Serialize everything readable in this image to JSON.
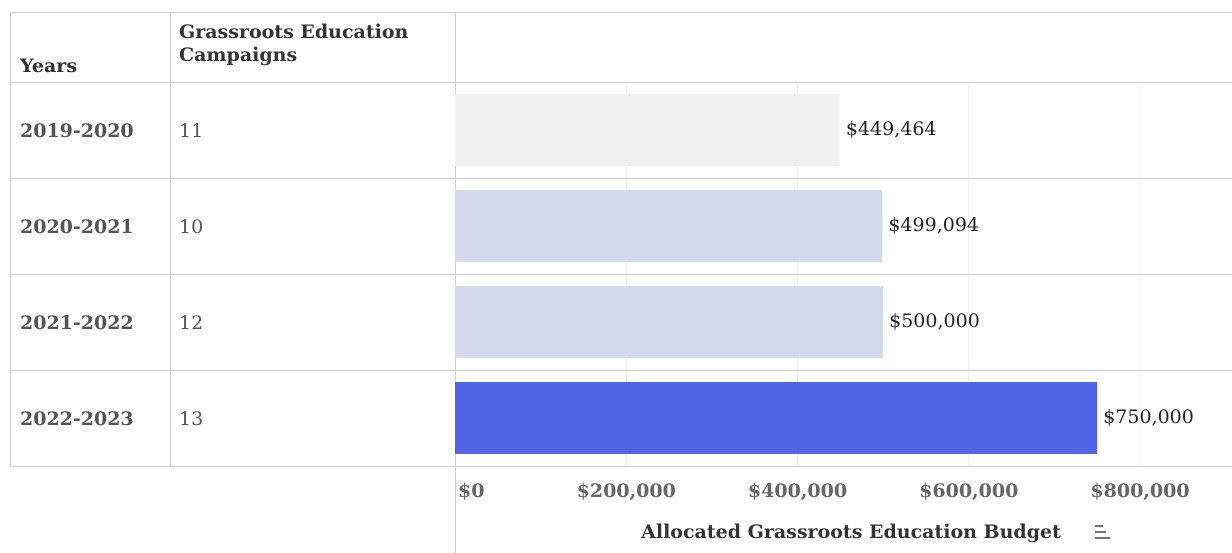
{
  "chart_data": {
    "type": "bar",
    "orientation": "horizontal",
    "category_label": "Years",
    "column_label": "Grassroots Education Campaigns",
    "categories": [
      "2019-2020",
      "2020-2021",
      "2021-2022",
      "2022-2023"
    ],
    "column_values": [
      11,
      10,
      12,
      13
    ],
    "values": [
      449464,
      499094,
      500000,
      750000
    ],
    "value_labels": [
      "$449,464",
      "$499,094",
      "$500,000",
      "$750,000"
    ],
    "colors": [
      "#f0f0f0",
      "#d6d9ee",
      "#d6d9ee",
      "#5163e6"
    ],
    "xlabel": "Allocated Grassroots Education Budget",
    "xlim": [
      0,
      800000
    ],
    "xticks": [
      {
        "value": 0,
        "label": "$0"
      },
      {
        "value": 200000,
        "label": "$200,000"
      },
      {
        "value": 400000,
        "label": "$400,000"
      },
      {
        "value": 600000,
        "label": "$600,000"
      },
      {
        "value": 800000,
        "label": "$800,000"
      }
    ],
    "grid": true
  }
}
